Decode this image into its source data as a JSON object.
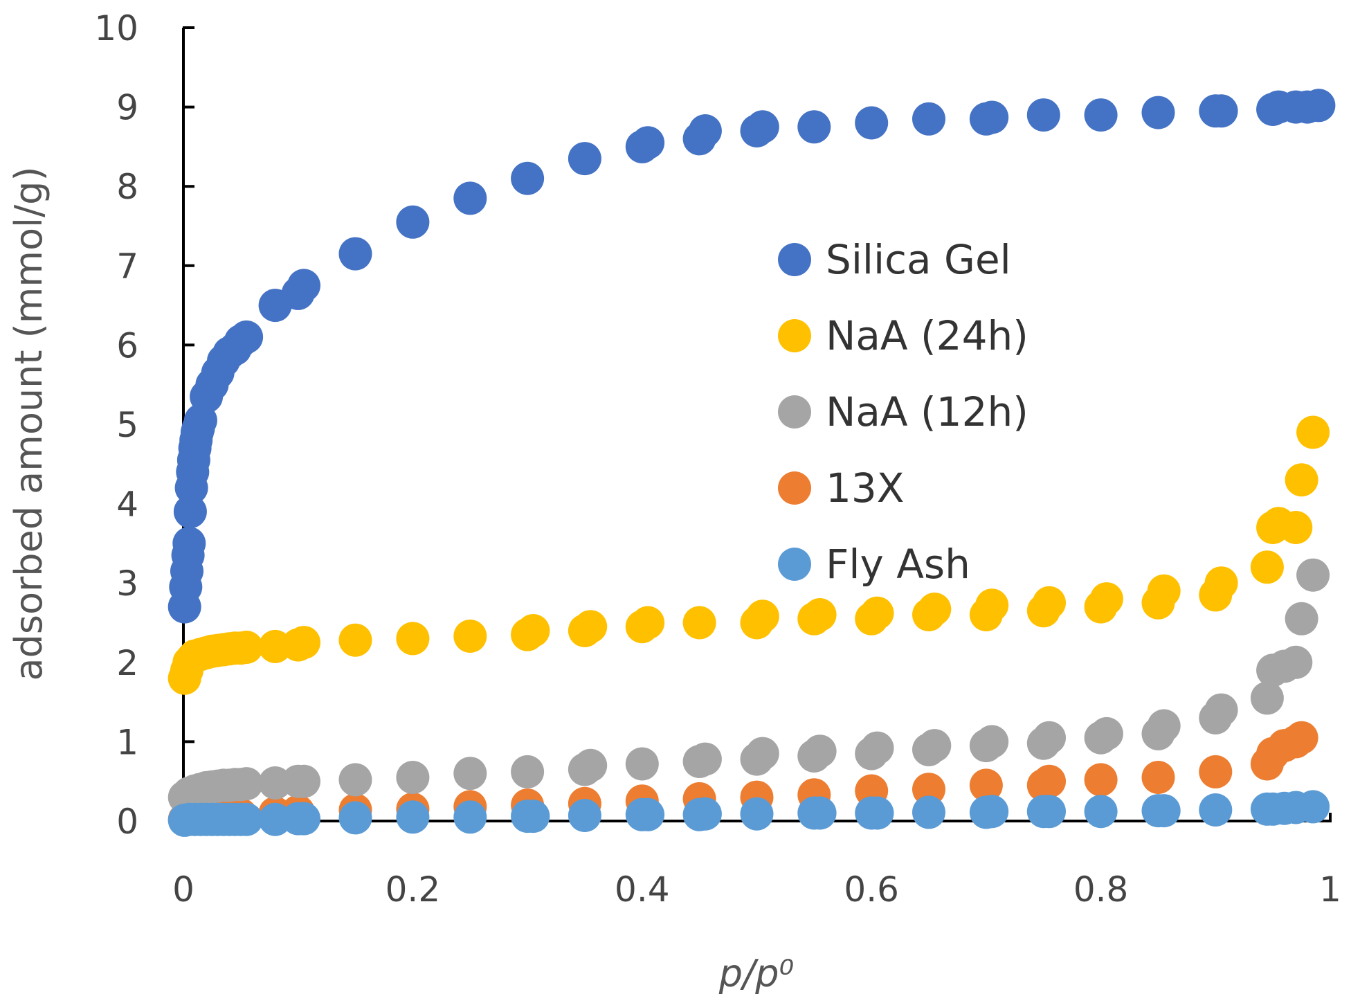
{
  "chart_data": {
    "type": "scatter",
    "title": "",
    "xlabel": "p/p⁰",
    "ylabel": "adsorbed amount (mmol/g)",
    "xlim": [
      0,
      1
    ],
    "ylim": [
      0,
      10
    ],
    "xticks": [
      "0",
      "0.2",
      "0.4",
      "0.6",
      "0.8",
      "1"
    ],
    "yticks": [
      "0",
      "1",
      "2",
      "3",
      "4",
      "5",
      "6",
      "7",
      "8",
      "9",
      "10"
    ],
    "legend_position": "center-right",
    "series": [
      {
        "name": "Silica Gel",
        "color": "#4472C4",
        "x": [
          0.001,
          0.002,
          0.003,
          0.004,
          0.005,
          0.006,
          0.007,
          0.008,
          0.009,
          0.01,
          0.011,
          0.012,
          0.013,
          0.015,
          0.02,
          0.025,
          0.03,
          0.035,
          0.04,
          0.045,
          0.05,
          0.055,
          0.08,
          0.1,
          0.105,
          0.15,
          0.2,
          0.25,
          0.3,
          0.35,
          0.4,
          0.405,
          0.45,
          0.455,
          0.5,
          0.505,
          0.55,
          0.6,
          0.65,
          0.7,
          0.705,
          0.75,
          0.8,
          0.85,
          0.9,
          0.905,
          0.95,
          0.955,
          0.97,
          0.98,
          0.99
        ],
        "y": [
          2.7,
          2.95,
          3.15,
          3.35,
          3.5,
          3.9,
          4.2,
          4.4,
          4.55,
          4.7,
          4.8,
          4.9,
          4.95,
          5.05,
          5.35,
          5.5,
          5.65,
          5.8,
          5.9,
          5.95,
          6.05,
          6.1,
          6.5,
          6.65,
          6.75,
          7.15,
          7.55,
          7.85,
          8.1,
          8.35,
          8.5,
          8.55,
          8.6,
          8.7,
          8.7,
          8.75,
          8.75,
          8.8,
          8.85,
          8.85,
          8.87,
          8.9,
          8.9,
          8.93,
          8.95,
          8.95,
          8.97,
          9.0,
          9.0,
          9.0,
          9.02
        ]
      },
      {
        "name": "NaA (24h)",
        "color": "#FFC000",
        "x": [
          0.001,
          0.003,
          0.005,
          0.008,
          0.01,
          0.015,
          0.02,
          0.025,
          0.03,
          0.035,
          0.04,
          0.045,
          0.05,
          0.055,
          0.08,
          0.1,
          0.105,
          0.15,
          0.2,
          0.25,
          0.3,
          0.305,
          0.35,
          0.355,
          0.4,
          0.405,
          0.45,
          0.5,
          0.505,
          0.55,
          0.555,
          0.6,
          0.605,
          0.65,
          0.655,
          0.7,
          0.705,
          0.75,
          0.755,
          0.8,
          0.805,
          0.85,
          0.855,
          0.9,
          0.905,
          0.945,
          0.95,
          0.955,
          0.97,
          0.975,
          0.985
        ],
        "y": [
          1.8,
          1.9,
          2.0,
          2.05,
          2.08,
          2.1,
          2.12,
          2.14,
          2.15,
          2.16,
          2.17,
          2.18,
          2.18,
          2.19,
          2.2,
          2.22,
          2.25,
          2.28,
          2.3,
          2.33,
          2.35,
          2.4,
          2.4,
          2.45,
          2.45,
          2.5,
          2.5,
          2.5,
          2.58,
          2.55,
          2.6,
          2.55,
          2.62,
          2.6,
          2.67,
          2.6,
          2.72,
          2.65,
          2.75,
          2.7,
          2.8,
          2.75,
          2.9,
          2.85,
          3.0,
          3.2,
          3.7,
          3.75,
          3.7,
          4.3,
          4.9
        ]
      },
      {
        "name": "NaA (12h)",
        "color": "#A5A5A5",
        "x": [
          0.001,
          0.005,
          0.01,
          0.015,
          0.02,
          0.025,
          0.03,
          0.035,
          0.04,
          0.045,
          0.05,
          0.055,
          0.08,
          0.1,
          0.105,
          0.15,
          0.2,
          0.25,
          0.3,
          0.35,
          0.355,
          0.4,
          0.45,
          0.455,
          0.5,
          0.505,
          0.55,
          0.555,
          0.6,
          0.605,
          0.65,
          0.655,
          0.7,
          0.705,
          0.75,
          0.755,
          0.8,
          0.805,
          0.85,
          0.855,
          0.9,
          0.905,
          0.945,
          0.95,
          0.96,
          0.97,
          0.975,
          0.985
        ],
        "y": [
          0.3,
          0.35,
          0.38,
          0.4,
          0.42,
          0.43,
          0.44,
          0.45,
          0.45,
          0.46,
          0.46,
          0.47,
          0.48,
          0.5,
          0.5,
          0.52,
          0.55,
          0.6,
          0.62,
          0.65,
          0.7,
          0.72,
          0.75,
          0.78,
          0.78,
          0.85,
          0.82,
          0.88,
          0.85,
          0.92,
          0.9,
          0.95,
          0.95,
          1.0,
          0.98,
          1.05,
          1.05,
          1.1,
          1.1,
          1.2,
          1.3,
          1.4,
          1.55,
          1.9,
          1.95,
          2.0,
          2.55,
          3.1
        ]
      },
      {
        "name": "13X",
        "color": "#ED7D31",
        "x": [
          0.001,
          0.01,
          0.02,
          0.03,
          0.04,
          0.05,
          0.08,
          0.1,
          0.15,
          0.2,
          0.25,
          0.3,
          0.35,
          0.4,
          0.45,
          0.5,
          0.55,
          0.6,
          0.65,
          0.7,
          0.75,
          0.755,
          0.8,
          0.85,
          0.9,
          0.945,
          0.95,
          0.96,
          0.97,
          0.975
        ],
        "y": [
          0.02,
          0.05,
          0.06,
          0.07,
          0.08,
          0.08,
          0.1,
          0.12,
          0.14,
          0.15,
          0.18,
          0.2,
          0.22,
          0.25,
          0.28,
          0.3,
          0.33,
          0.38,
          0.4,
          0.45,
          0.45,
          0.5,
          0.52,
          0.55,
          0.62,
          0.72,
          0.85,
          0.95,
          1.0,
          1.05
        ]
      },
      {
        "name": "Fly Ash",
        "color": "#5B9BD5",
        "x": [
          0.001,
          0.005,
          0.01,
          0.015,
          0.02,
          0.025,
          0.03,
          0.035,
          0.04,
          0.045,
          0.05,
          0.055,
          0.08,
          0.1,
          0.105,
          0.15,
          0.2,
          0.25,
          0.3,
          0.305,
          0.35,
          0.4,
          0.405,
          0.45,
          0.455,
          0.5,
          0.55,
          0.555,
          0.6,
          0.605,
          0.65,
          0.7,
          0.705,
          0.75,
          0.755,
          0.8,
          0.85,
          0.855,
          0.9,
          0.945,
          0.95,
          0.96,
          0.97,
          0.985
        ],
        "y": [
          0.01,
          0.02,
          0.02,
          0.02,
          0.02,
          0.02,
          0.02,
          0.02,
          0.02,
          0.02,
          0.02,
          0.02,
          0.02,
          0.03,
          0.03,
          0.04,
          0.05,
          0.05,
          0.06,
          0.06,
          0.07,
          0.08,
          0.08,
          0.08,
          0.09,
          0.09,
          0.1,
          0.1,
          0.1,
          0.1,
          0.11,
          0.11,
          0.12,
          0.12,
          0.12,
          0.12,
          0.13,
          0.13,
          0.14,
          0.15,
          0.15,
          0.16,
          0.17,
          0.18
        ]
      }
    ]
  }
}
